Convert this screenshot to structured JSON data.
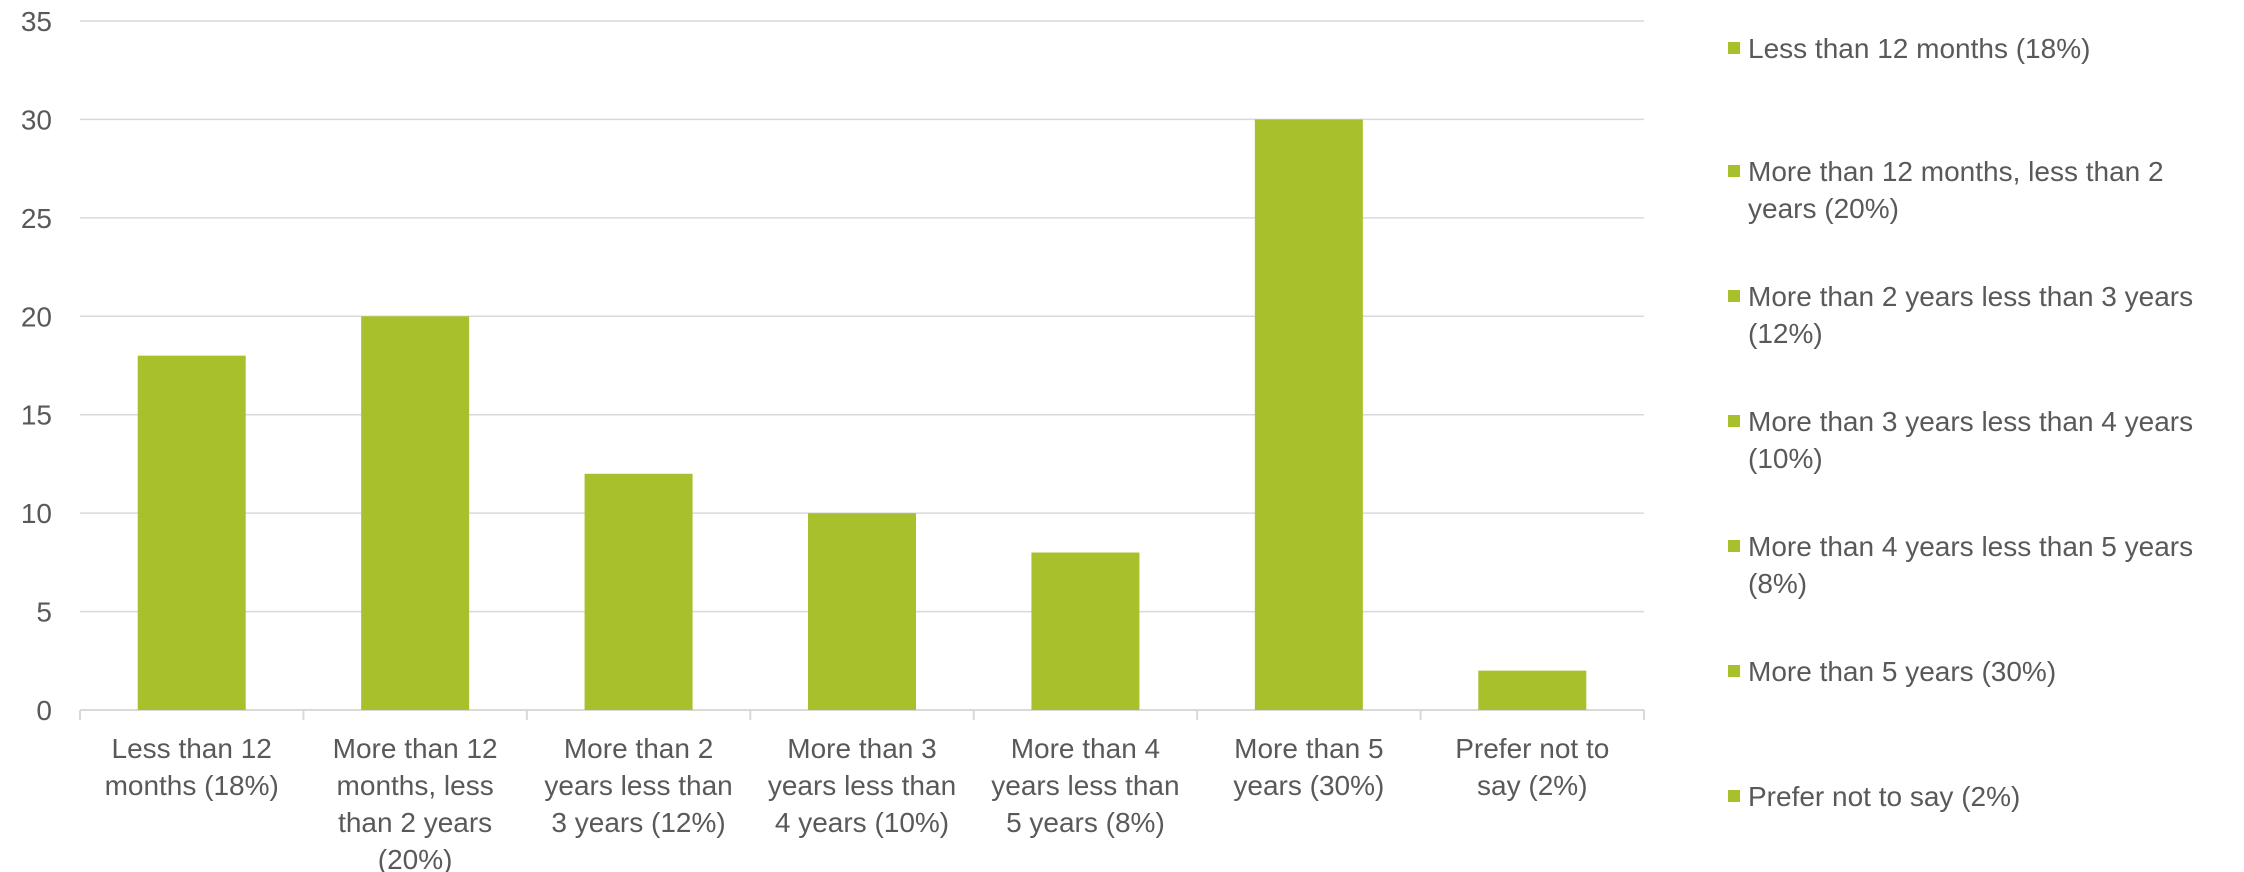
{
  "chart_data": {
    "type": "bar",
    "title": "",
    "xlabel": "",
    "ylabel": "",
    "categories": [
      "Less than 12 months (18%)",
      "More than 12 months, less than 2 years (20%)",
      "More than 2 years less than 3 years (12%)",
      "More than 3 years less than 4 years (10%)",
      "More than 4 years less than 5 years (8%)",
      "More than 5 years (30%)",
      "Prefer not to say (2%)"
    ],
    "category_label_lines": [
      [
        "Less than 12",
        "months (18%)"
      ],
      [
        "More than 12",
        "months, less",
        "than 2 years",
        "(20%)"
      ],
      [
        "More than 2",
        "years less than",
        "3 years (12%)"
      ],
      [
        "More than 3",
        "years less than",
        "4 years (10%)"
      ],
      [
        "More than 4",
        "years less than",
        "5 years (8%)"
      ],
      [
        "More than 5",
        "years (30%)"
      ],
      [
        "Prefer not to",
        "say (2%)"
      ]
    ],
    "values": [
      18,
      20,
      12,
      10,
      8,
      30,
      2
    ],
    "ylim": [
      0,
      35
    ],
    "yticks": [
      0,
      5,
      10,
      15,
      20,
      25,
      30,
      35
    ],
    "grid": true,
    "legend_position": "right",
    "legend": [
      "Less than 12 months (18%)",
      "More than 12 months, less than 2 years (20%)",
      "More than 2 years less than 3 years (12%)",
      "More than 3 years less than 4 years (10%)",
      "More than 4 years less than 5 years (8%)",
      "More than 5 years (30%)",
      "Prefer not to say (2%)"
    ],
    "colors": {
      "bar": "#a9c02d",
      "grid": "#d9d9d9",
      "text": "#595959"
    }
  }
}
